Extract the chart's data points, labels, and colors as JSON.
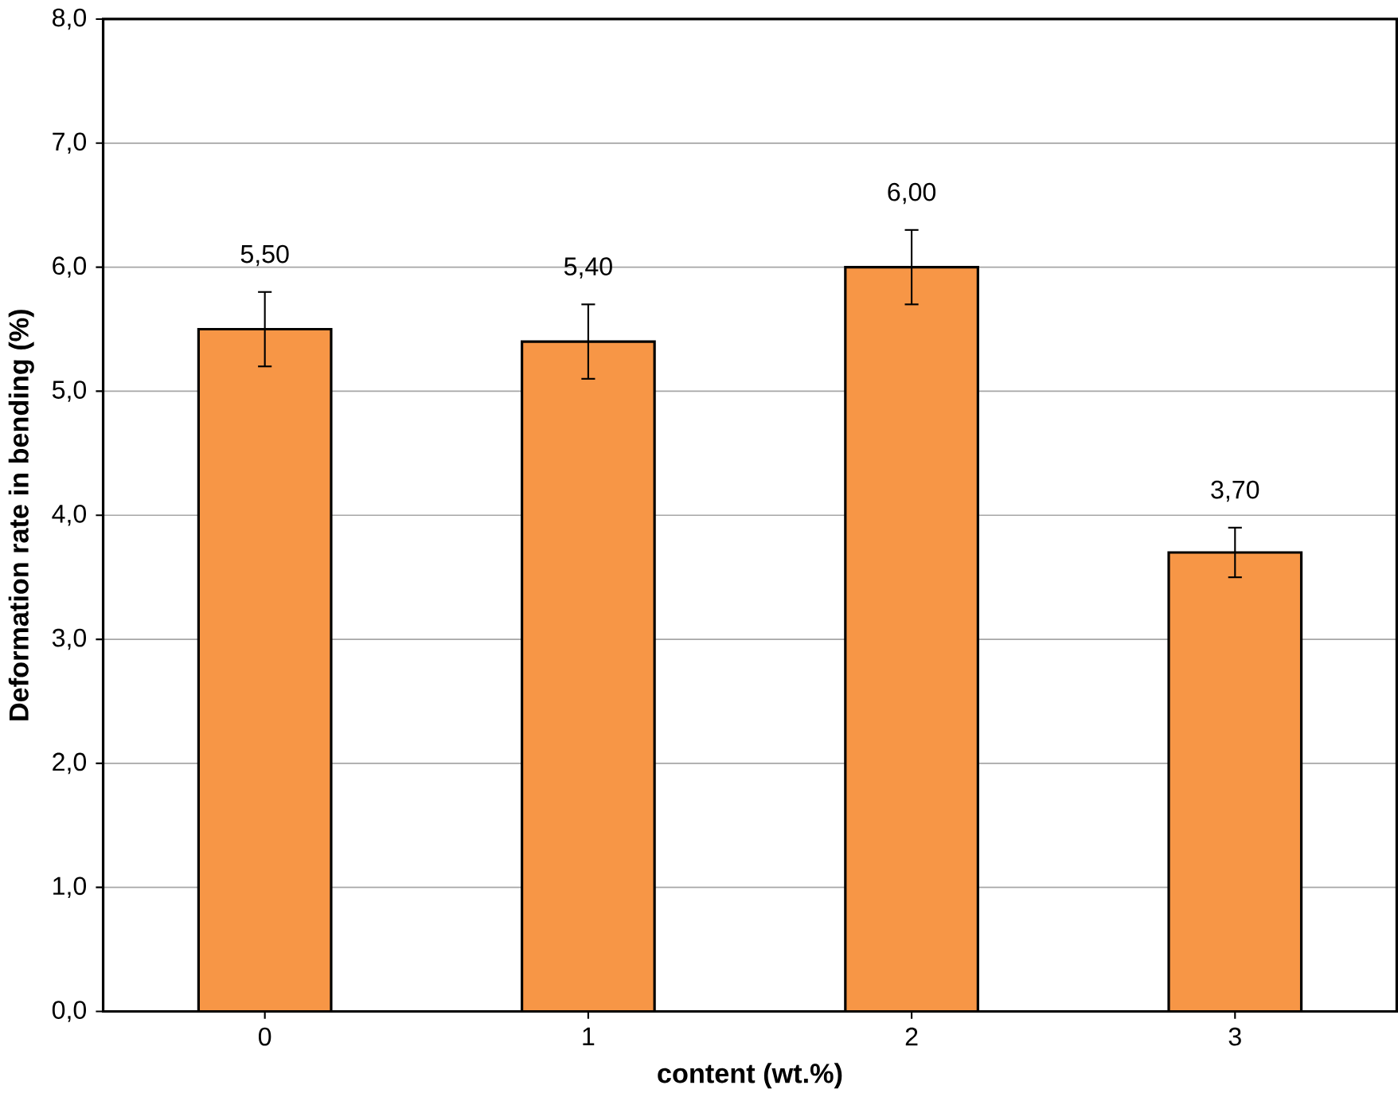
{
  "chart_data": {
    "type": "bar",
    "xlabel": "content (wt.%)",
    "ylabel": "Deformation rate in bending (%)",
    "categories": [
      "0",
      "1",
      "2",
      "3"
    ],
    "values": [
      5.5,
      5.4,
      6.0,
      3.7
    ],
    "errors": [
      0.3,
      0.3,
      0.3,
      0.2
    ],
    "value_labels": [
      "5,50",
      "5,40",
      "6,00",
      "3,70"
    ],
    "color": "#f79646",
    "ylim": [
      0,
      8
    ],
    "yticks": [
      {
        "value": 0,
        "label": "0,0"
      },
      {
        "value": 1,
        "label": "1,0"
      },
      {
        "value": 2,
        "label": "2,0"
      },
      {
        "value": 3,
        "label": "3,0"
      },
      {
        "value": 4,
        "label": "4,0"
      },
      {
        "value": 5,
        "label": "5,0"
      },
      {
        "value": 6,
        "label": "6,0"
      },
      {
        "value": 7,
        "label": "7,0"
      },
      {
        "value": 8,
        "label": "8,0"
      }
    ],
    "grid": "y"
  }
}
